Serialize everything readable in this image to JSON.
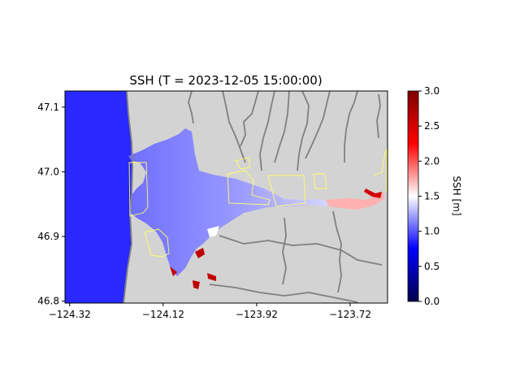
{
  "chart_data": {
    "type": "heatmap",
    "title": "SSH (T = 2023-12-05 15:00:00)",
    "xlabel": "",
    "ylabel": "",
    "xlim": [
      -124.33,
      -123.64
    ],
    "ylim": [
      46.797,
      47.125
    ],
    "x_ticks": [
      -124.32,
      -124.12,
      -123.92,
      -123.72
    ],
    "x_tick_labels": [
      "−124.32",
      "−124.12",
      "−123.92",
      "−123.72"
    ],
    "y_ticks": [
      46.8,
      46.9,
      47.0,
      47.1
    ],
    "y_tick_labels": [
      "46.8",
      "46.9",
      "47.0",
      "47.1"
    ],
    "colorbar": {
      "label": "SSH [m]",
      "colormap": "seismic",
      "range": [
        0.0,
        3.0
      ],
      "ticks": [
        0.0,
        0.5,
        1.0,
        1.5,
        2.0,
        2.5,
        3.0
      ],
      "tick_labels": [
        "0.0",
        "0.5",
        "1.0",
        "1.5",
        "2.0",
        "2.5",
        "3.0"
      ]
    },
    "grid": false,
    "land_color": "#d3d3d3",
    "coastline_color": "#808080",
    "boundary_color": "#ffff66",
    "ocean_ssh_m": 0.95,
    "bay_ssh_m": 1.15,
    "river_ssh_m": [
      1.6,
      1.8
    ],
    "inlet_ssh_m": 3.0
  }
}
